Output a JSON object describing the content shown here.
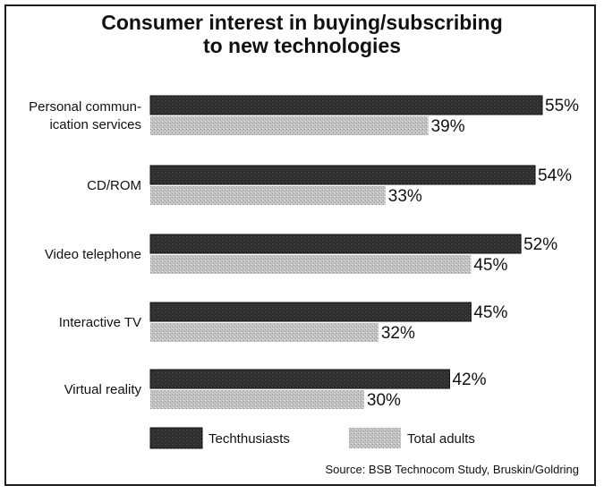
{
  "chart_data": {
    "type": "bar",
    "orientation": "horizontal",
    "title": "Consumer interest in buying/subscribing to new technologies",
    "title_lines": [
      "Consumer interest in buying/subscribing",
      "to new technologies"
    ],
    "categories": [
      "Personal communication services",
      "CD/ROM",
      "Video telephone",
      "Interactive TV",
      "Virtual reality"
    ],
    "category_lines": [
      [
        "Personal commun-",
        "ication services"
      ],
      [
        "CD/ROM"
      ],
      [
        "Video telephone"
      ],
      [
        "Interactive TV"
      ],
      [
        "Virtual reality"
      ]
    ],
    "series": [
      {
        "name": "Techthusiasts",
        "values": [
          55,
          54,
          52,
          45,
          42
        ],
        "labels": [
          "55%",
          "54%",
          "52%",
          "45%",
          "42%"
        ],
        "color": "#2b2b2b"
      },
      {
        "name": "Total adults",
        "values": [
          39,
          33,
          45,
          32,
          30
        ],
        "labels": [
          "39%",
          "33%",
          "45%",
          "32%",
          "30%"
        ],
        "color": "#bdbdbd"
      }
    ],
    "xlim": [
      0,
      55
    ],
    "xlabel": "",
    "ylabel": "",
    "grid": false,
    "legend": "bottom",
    "source": "Source: BSB Technocom Study, Bruskin/Goldring"
  }
}
